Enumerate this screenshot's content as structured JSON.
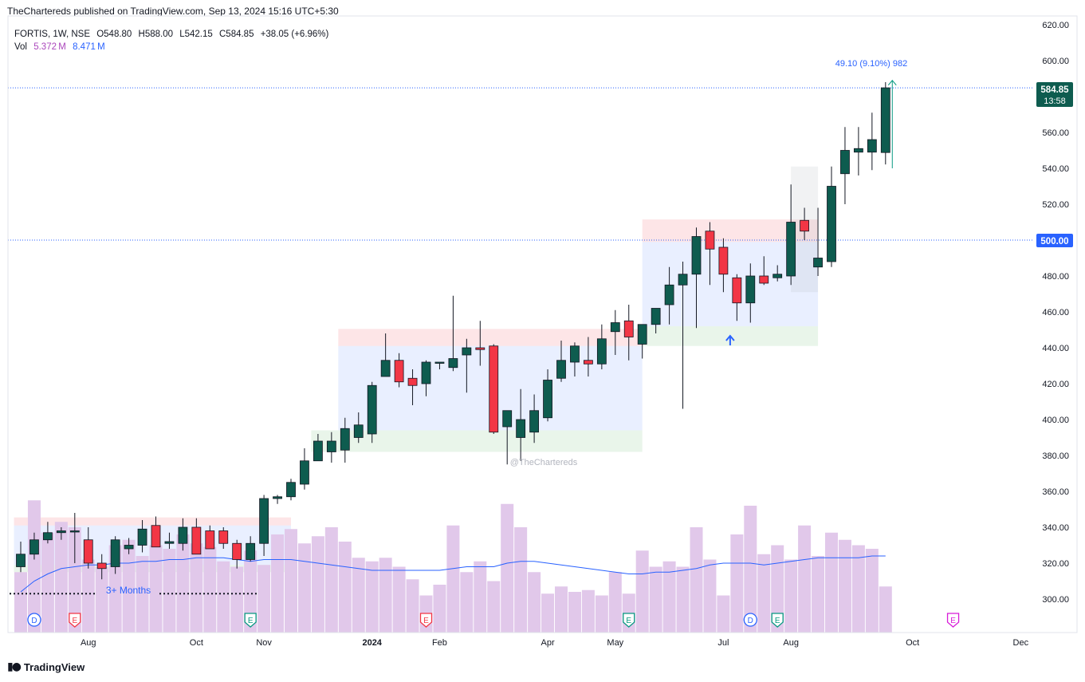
{
  "publisher": "TheChartereds published on TradingView.com, Sep 13, 2024 15:16 UTC+5:30",
  "legend": {
    "symbol": "FORTIS, 1W, NSE",
    "open": "O548.80",
    "high": "H588.00",
    "low": "L542.15",
    "close": "C584.85",
    "change": "+38.05 (+6.96%)",
    "vol_label": "Vol",
    "vol_value": "5.372 M",
    "vol_ma": "8.471 M"
  },
  "price_badges": {
    "last_price": "584.85",
    "countdown": "13:58",
    "level": "500.00"
  },
  "measure_label": "49.10 (9.10%) 982",
  "months_label": "3+ Months",
  "watermark": "@TheChartereds",
  "footer": "TradingView",
  "colors": {
    "up": "#0e5c4f",
    "down": "#f23645",
    "volume": "#e1c8ea",
    "vol_ma": "#2962ff",
    "accent": "#2962ff",
    "badge_green": "#0e5c4f"
  },
  "event_markers": [
    {
      "label": "D",
      "kind": "dividend",
      "color": "#2962ff",
      "after": 1
    },
    {
      "label": "E",
      "kind": "earnings",
      "color": "#f23645",
      "after": 4
    },
    {
      "label": "E",
      "kind": "earnings",
      "color": "#089981",
      "after": 17
    },
    {
      "label": "E",
      "kind": "earnings",
      "color": "#f23645",
      "after": 30
    },
    {
      "label": "E",
      "kind": "earnings",
      "color": "#089981",
      "after": 45
    },
    {
      "label": "D",
      "kind": "dividend",
      "color": "#2962ff",
      "after": 54
    },
    {
      "label": "E",
      "kind": "earnings",
      "color": "#089981",
      "after": 56
    },
    {
      "label": "E",
      "kind": "earnings",
      "color": "#d81bd8",
      "after": 69
    }
  ],
  "chart_data": {
    "type": "candlestick",
    "symbol": "FORTIS",
    "interval": "1W",
    "exchange": "NSE",
    "y_axis": {
      "ticks": [
        620,
        600,
        580,
        560,
        540,
        520,
        500,
        480,
        460,
        440,
        420,
        400,
        380,
        360,
        340,
        320,
        300
      ],
      "ylim": [
        282,
        626
      ]
    },
    "x_axis": {
      "ticks": [
        {
          "label": "Aug",
          "after": 5,
          "bold": false
        },
        {
          "label": "Oct",
          "after": 13,
          "bold": false
        },
        {
          "label": "Nov",
          "after": 18,
          "bold": false
        },
        {
          "label": "2024",
          "after": 26,
          "bold": true
        },
        {
          "label": "Feb",
          "after": 31,
          "bold": false
        },
        {
          "label": "Apr",
          "after": 39,
          "bold": false
        },
        {
          "label": "May",
          "after": 44,
          "bold": false
        },
        {
          "label": "Jul",
          "after": 52,
          "bold": false
        },
        {
          "label": "Aug",
          "after": 57,
          "bold": false
        },
        {
          "label": "Oct",
          "after": 66,
          "bold": false
        },
        {
          "label": "Dec",
          "after": 74,
          "bold": false
        }
      ]
    },
    "candles": [
      [
        318,
        332,
        315,
        325
      ],
      [
        325,
        337,
        322,
        333
      ],
      [
        333,
        343,
        331,
        337
      ],
      [
        337,
        340,
        333,
        338
      ],
      [
        338,
        348,
        320,
        338
      ],
      [
        333,
        340,
        317,
        320
      ],
      [
        320,
        325,
        311,
        317
      ],
      [
        318,
        335,
        314,
        333
      ],
      [
        328,
        334,
        325,
        330
      ],
      [
        330,
        344,
        326,
        339
      ],
      [
        341,
        346,
        329,
        329
      ],
      [
        331,
        337,
        328,
        332
      ],
      [
        331,
        345,
        327,
        340
      ],
      [
        340,
        345,
        326,
        325
      ],
      [
        338,
        341,
        328,
        328
      ],
      [
        338,
        340,
        328,
        331
      ],
      [
        331,
        333,
        317,
        322
      ],
      [
        322,
        335,
        321,
        331
      ],
      [
        331,
        358,
        324,
        356
      ],
      [
        356,
        358,
        353,
        357
      ],
      [
        357,
        367,
        355,
        365
      ],
      [
        364,
        384,
        361,
        377
      ],
      [
        377,
        392,
        377,
        388
      ],
      [
        382,
        393,
        376,
        388
      ],
      [
        383,
        401,
        376,
        395
      ],
      [
        390,
        404,
        387,
        397
      ],
      [
        392,
        421,
        387,
        419
      ],
      [
        424,
        448,
        427,
        433
      ],
      [
        433,
        437,
        418,
        421
      ],
      [
        423,
        428,
        408,
        419
      ],
      [
        420,
        433,
        413,
        432
      ],
      [
        432,
        432,
        428,
        432
      ],
      [
        429,
        469,
        427,
        434
      ],
      [
        436,
        445,
        415,
        440
      ],
      [
        440,
        455,
        430,
        439
      ],
      [
        441,
        442,
        392,
        393
      ],
      [
        396,
        403,
        375,
        405
      ],
      [
        390,
        417,
        377,
        400
      ],
      [
        393,
        414,
        387,
        405
      ],
      [
        401,
        428,
        399,
        422
      ],
      [
        423,
        444,
        421,
        433
      ],
      [
        432,
        443,
        424,
        441
      ],
      [
        433,
        446,
        424,
        431
      ],
      [
        431,
        453,
        428,
        445
      ],
      [
        449,
        461,
        436,
        454
      ],
      [
        455,
        464,
        433,
        446
      ],
      [
        442,
        453,
        434,
        453
      ],
      [
        453,
        461,
        448,
        462
      ],
      [
        464,
        485,
        453,
        475
      ],
      [
        475,
        488,
        406,
        481
      ],
      [
        481,
        507,
        451,
        502
      ],
      [
        505,
        510,
        475,
        495
      ],
      [
        496,
        501,
        471,
        481
      ],
      [
        479,
        481,
        455,
        465
      ],
      [
        465,
        487,
        454,
        480
      ],
      [
        480,
        491,
        475,
        476
      ],
      [
        479,
        486,
        477,
        481
      ],
      [
        480,
        531,
        475,
        510
      ],
      [
        511,
        518,
        500,
        505
      ],
      [
        485,
        518,
        480,
        490
      ],
      [
        488,
        541,
        485,
        530
      ],
      [
        537,
        563,
        520,
        550
      ],
      [
        549,
        563,
        536,
        551
      ],
      [
        549,
        571,
        539,
        556
      ],
      [
        548.8,
        588,
        542.15,
        584.85
      ]
    ],
    "volume": [
      315,
      355,
      337,
      343,
      340,
      322,
      318,
      330,
      333,
      324,
      330,
      328,
      336,
      331,
      329,
      321,
      318,
      327,
      319,
      336,
      339,
      331,
      335,
      340,
      332,
      323,
      321,
      323,
      318,
      311,
      302,
      308,
      341,
      315,
      321,
      310,
      353,
      340,
      315,
      303,
      307,
      304,
      305,
      302,
      315,
      303,
      327,
      318,
      321,
      318,
      340,
      322,
      302,
      336,
      352,
      325,
      330,
      322,
      341,
      324,
      337,
      333,
      330,
      328,
      307
    ],
    "volume_ma": [
      304,
      310,
      314,
      317,
      318,
      319,
      319,
      320,
      320,
      321,
      321,
      322,
      322,
      323,
      323,
      323,
      322,
      321,
      322,
      322,
      322,
      321,
      320,
      319,
      318,
      317,
      316,
      316,
      316,
      316,
      316,
      316,
      317,
      318,
      318,
      318,
      320,
      321,
      321,
      320,
      319,
      318,
      317,
      316,
      315,
      314,
      314,
      315,
      315,
      316,
      317,
      319,
      320,
      320,
      320,
      319,
      320,
      321,
      322,
      323,
      323,
      323,
      323,
      324,
      324
    ],
    "zones": [
      {
        "role": "supply",
        "x0": 0,
        "x1": 20.5,
        "y0": 341,
        "y1": 345.5
      },
      {
        "role": "range",
        "x0": 0,
        "x1": 20.5,
        "y0": 319,
        "y1": 341
      },
      {
        "role": "demand",
        "x0": 0,
        "x1": 20.5,
        "y0": 315,
        "y1": 319
      },
      {
        "role": "supply",
        "x0": 24,
        "x1": 46.5,
        "y0": 441,
        "y1": 450.5
      },
      {
        "role": "range",
        "x0": 24,
        "x1": 46.5,
        "y0": 394,
        "y1": 441
      },
      {
        "role": "demand",
        "x0": 22,
        "x1": 46.5,
        "y0": 382,
        "y1": 394
      },
      {
        "role": "supply",
        "x0": 46.5,
        "x1": 59.5,
        "y0": 499,
        "y1": 511.5
      },
      {
        "role": "range",
        "x0": 46.5,
        "x1": 59.5,
        "y0": 452,
        "y1": 499
      },
      {
        "role": "demand",
        "x0": 46.5,
        "x1": 59.5,
        "y0": 441,
        "y1": 452
      },
      {
        "role": "side",
        "x0": 57.5,
        "x1": 59.5,
        "y0": 471,
        "y1": 541
      }
    ],
    "horizontal_lines": [
      584.85,
      500
    ],
    "measure": {
      "x": 64.5,
      "from": 540,
      "to": 589
    },
    "up_arrow": {
      "x": 52.5,
      "price": 444
    },
    "months_span": {
      "x0": 0,
      "x1": 17.5,
      "price": 303
    }
  }
}
